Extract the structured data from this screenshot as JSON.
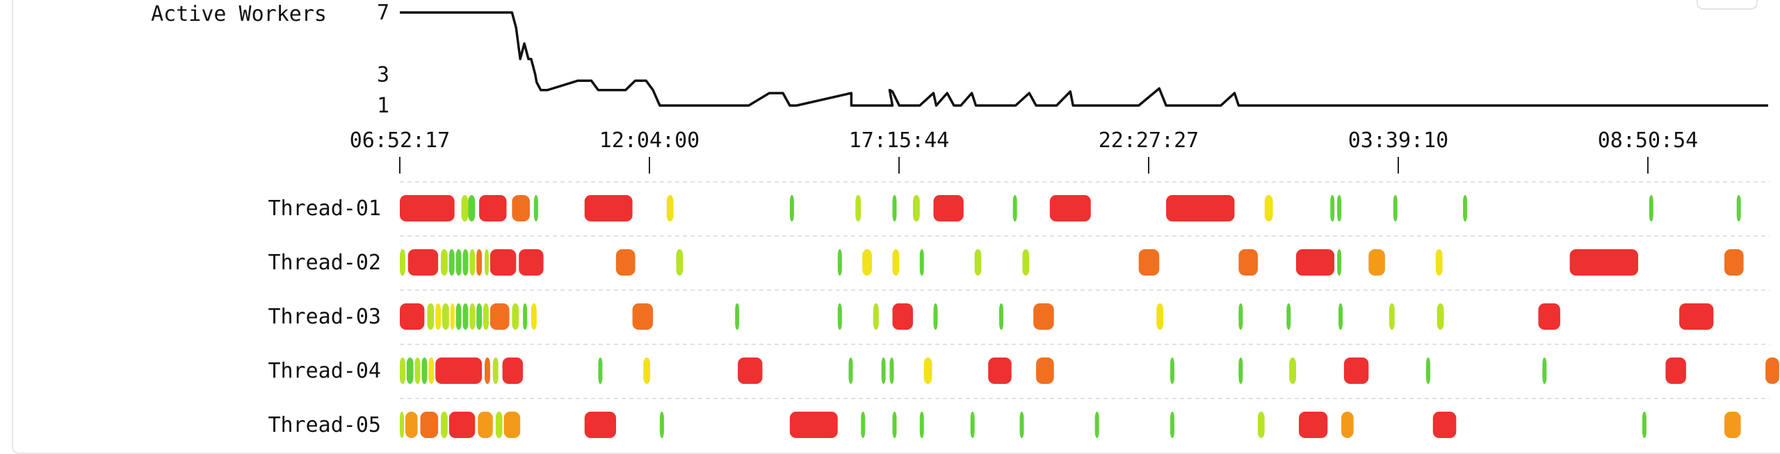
{
  "chart_data": {
    "type": "timeline",
    "title": "",
    "workers_chart": {
      "label": "Active Workers",
      "y_ticks": [
        7,
        3,
        1
      ],
      "ylim": [
        1,
        7
      ],
      "line_color": "#111111",
      "series_t": [
        0,
        0.082,
        0.085,
        0.088,
        0.091,
        0.094,
        0.096,
        0.099,
        0.1,
        0.103,
        0.108,
        0.13,
        0.14,
        0.145,
        0.165,
        0.172,
        0.18,
        0.185,
        0.19,
        0.2,
        0.21,
        0.255,
        0.27,
        0.28,
        0.285,
        0.29,
        0.33,
        0.33,
        0.36,
        0.358,
        0.36,
        0.365,
        0.38,
        0.39,
        0.392,
        0.4,
        0.405,
        0.408,
        0.41,
        0.418,
        0.421,
        0.45,
        0.46,
        0.465,
        0.47,
        0.48,
        0.49,
        0.492,
        0.495,
        0.5,
        0.51,
        0.52,
        0.54,
        0.555,
        0.56,
        0.57,
        0.6,
        0.61,
        0.613,
        0.625,
        0.62,
        0.65,
        0.67,
        0.675,
        0.68,
        0.685,
        0.69,
        0.7,
        0.71,
        0.715,
        0.72,
        0.725,
        0.74,
        0.745,
        0.76,
        0.765,
        0.78,
        0.785,
        0.8,
        0.805,
        0.81,
        0.83,
        0.86,
        0.9,
        0.91,
        0.94,
        0.945,
        0.955,
        0.965,
        0.97,
        0.975,
        0.98,
        0.985,
        0.99,
        1.0,
        1.01
      ],
      "series_v": [
        7,
        7,
        6,
        4,
        5,
        4,
        4,
        3,
        2.5,
        2,
        2,
        2.6,
        2.6,
        2,
        2,
        2.6,
        2.6,
        2,
        1,
        1,
        1,
        1,
        1.8,
        1.8,
        1,
        1,
        1.8,
        1,
        1,
        2,
        1.9,
        1,
        1,
        1.8,
        1,
        1.8,
        1,
        1,
        1,
        1.8,
        1,
        1,
        1.8,
        1,
        1,
        1,
        1.9,
        1,
        1,
        1,
        1,
        1,
        1,
        2.1,
        1,
        1,
        1,
        1.8,
        1,
        1,
        1,
        1,
        1,
        1,
        1,
        1,
        1,
        1,
        1,
        1,
        1,
        1,
        1,
        1,
        1,
        1,
        1,
        1,
        1,
        1,
        1,
        1,
        1,
        1,
        1,
        1,
        1,
        1,
        1,
        1,
        1,
        1,
        1,
        1,
        1,
        1
      ]
    },
    "x_tick_labels": [
      "06:52:17",
      "12:04:00",
      "17:15:44",
      "22:27:27",
      "03:39:10",
      "08:50:54"
    ],
    "status_colors": {
      "red": "#ee3030",
      "orange": "#f07020",
      "amber": "#f39a1a",
      "yellow": "#f2e21a",
      "lime": "#b7e327",
      "green": "#5fd23a"
    },
    "threads": [
      {
        "name": "Thread-01",
        "bars": [
          {
            "start": 0.0,
            "end": 0.04,
            "color": "red"
          },
          {
            "start": 0.045,
            "end": 0.05,
            "color": "lime"
          },
          {
            "start": 0.05,
            "end": 0.055,
            "color": "green"
          },
          {
            "start": 0.058,
            "end": 0.078,
            "color": "red"
          },
          {
            "start": 0.082,
            "end": 0.095,
            "color": "orange"
          },
          {
            "start": 0.098,
            "end": 0.1,
            "color": "green"
          },
          {
            "start": 0.135,
            "end": 0.17,
            "color": "red"
          },
          {
            "start": 0.195,
            "end": 0.2,
            "color": "yellow"
          },
          {
            "start": 0.285,
            "end": 0.287,
            "color": "green"
          },
          {
            "start": 0.333,
            "end": 0.337,
            "color": "lime"
          },
          {
            "start": 0.36,
            "end": 0.362,
            "color": "green"
          },
          {
            "start": 0.375,
            "end": 0.38,
            "color": "lime"
          },
          {
            "start": 0.39,
            "end": 0.412,
            "color": "red"
          },
          {
            "start": 0.448,
            "end": 0.45,
            "color": "green"
          },
          {
            "start": 0.475,
            "end": 0.505,
            "color": "red"
          },
          {
            "start": 0.56,
            "end": 0.61,
            "color": "red"
          },
          {
            "start": 0.632,
            "end": 0.638,
            "color": "yellow"
          },
          {
            "start": 0.68,
            "end": 0.683,
            "color": "green"
          },
          {
            "start": 0.685,
            "end": 0.688,
            "color": "green"
          },
          {
            "start": 0.726,
            "end": 0.728,
            "color": "green"
          },
          {
            "start": 0.777,
            "end": 0.779,
            "color": "green"
          },
          {
            "start": 0.913,
            "end": 0.915,
            "color": "green"
          },
          {
            "start": 0.977,
            "end": 0.979,
            "color": "green"
          }
        ]
      },
      {
        "name": "Thread-02",
        "bars": [
          {
            "start": 0.0,
            "end": 0.004,
            "color": "lime"
          },
          {
            "start": 0.006,
            "end": 0.028,
            "color": "red"
          },
          {
            "start": 0.03,
            "end": 0.035,
            "color": "lime"
          },
          {
            "start": 0.036,
            "end": 0.04,
            "color": "green"
          },
          {
            "start": 0.041,
            "end": 0.045,
            "color": "green"
          },
          {
            "start": 0.046,
            "end": 0.05,
            "color": "green"
          },
          {
            "start": 0.051,
            "end": 0.055,
            "color": "lime"
          },
          {
            "start": 0.056,
            "end": 0.06,
            "color": "orange"
          },
          {
            "start": 0.062,
            "end": 0.065,
            "color": "lime"
          },
          {
            "start": 0.066,
            "end": 0.085,
            "color": "red"
          },
          {
            "start": 0.087,
            "end": 0.105,
            "color": "red"
          },
          {
            "start": 0.158,
            "end": 0.172,
            "color": "orange"
          },
          {
            "start": 0.202,
            "end": 0.207,
            "color": "lime"
          },
          {
            "start": 0.32,
            "end": 0.323,
            "color": "green"
          },
          {
            "start": 0.338,
            "end": 0.345,
            "color": "yellow"
          },
          {
            "start": 0.36,
            "end": 0.365,
            "color": "yellow"
          },
          {
            "start": 0.38,
            "end": 0.383,
            "color": "green"
          },
          {
            "start": 0.42,
            "end": 0.425,
            "color": "lime"
          },
          {
            "start": 0.455,
            "end": 0.46,
            "color": "lime"
          },
          {
            "start": 0.54,
            "end": 0.555,
            "color": "orange"
          },
          {
            "start": 0.613,
            "end": 0.627,
            "color": "orange"
          },
          {
            "start": 0.655,
            "end": 0.683,
            "color": "red"
          },
          {
            "start": 0.685,
            "end": 0.687,
            "color": "green"
          },
          {
            "start": 0.708,
            "end": 0.72,
            "color": "amber"
          },
          {
            "start": 0.757,
            "end": 0.762,
            "color": "yellow"
          },
          {
            "start": 0.855,
            "end": 0.905,
            "color": "red"
          },
          {
            "start": 0.968,
            "end": 0.982,
            "color": "orange"
          }
        ]
      },
      {
        "name": "Thread-03",
        "bars": [
          {
            "start": 0.0,
            "end": 0.018,
            "color": "red"
          },
          {
            "start": 0.02,
            "end": 0.025,
            "color": "lime"
          },
          {
            "start": 0.026,
            "end": 0.03,
            "color": "yellow"
          },
          {
            "start": 0.031,
            "end": 0.036,
            "color": "lime"
          },
          {
            "start": 0.037,
            "end": 0.04,
            "color": "yellow"
          },
          {
            "start": 0.041,
            "end": 0.045,
            "color": "green"
          },
          {
            "start": 0.046,
            "end": 0.05,
            "color": "green"
          },
          {
            "start": 0.051,
            "end": 0.055,
            "color": "lime"
          },
          {
            "start": 0.056,
            "end": 0.06,
            "color": "green"
          },
          {
            "start": 0.061,
            "end": 0.065,
            "color": "lime"
          },
          {
            "start": 0.066,
            "end": 0.08,
            "color": "orange"
          },
          {
            "start": 0.082,
            "end": 0.087,
            "color": "lime"
          },
          {
            "start": 0.09,
            "end": 0.093,
            "color": "green"
          },
          {
            "start": 0.096,
            "end": 0.1,
            "color": "yellow"
          },
          {
            "start": 0.17,
            "end": 0.185,
            "color": "orange"
          },
          {
            "start": 0.245,
            "end": 0.247,
            "color": "green"
          },
          {
            "start": 0.32,
            "end": 0.323,
            "color": "green"
          },
          {
            "start": 0.346,
            "end": 0.35,
            "color": "lime"
          },
          {
            "start": 0.36,
            "end": 0.375,
            "color": "red"
          },
          {
            "start": 0.39,
            "end": 0.392,
            "color": "green"
          },
          {
            "start": 0.438,
            "end": 0.44,
            "color": "green"
          },
          {
            "start": 0.463,
            "end": 0.478,
            "color": "orange"
          },
          {
            "start": 0.553,
            "end": 0.558,
            "color": "yellow"
          },
          {
            "start": 0.613,
            "end": 0.616,
            "color": "green"
          },
          {
            "start": 0.648,
            "end": 0.651,
            "color": "green"
          },
          {
            "start": 0.686,
            "end": 0.688,
            "color": "green"
          },
          {
            "start": 0.723,
            "end": 0.727,
            "color": "lime"
          },
          {
            "start": 0.758,
            "end": 0.763,
            "color": "lime"
          },
          {
            "start": 0.832,
            "end": 0.848,
            "color": "red"
          },
          {
            "start": 0.935,
            "end": 0.96,
            "color": "red"
          }
        ]
      },
      {
        "name": "Thread-04",
        "bars": [
          {
            "start": 0.0,
            "end": 0.004,
            "color": "lime"
          },
          {
            "start": 0.005,
            "end": 0.01,
            "color": "green"
          },
          {
            "start": 0.011,
            "end": 0.015,
            "color": "lime"
          },
          {
            "start": 0.016,
            "end": 0.02,
            "color": "green"
          },
          {
            "start": 0.021,
            "end": 0.025,
            "color": "yellow"
          },
          {
            "start": 0.026,
            "end": 0.06,
            "color": "red"
          },
          {
            "start": 0.062,
            "end": 0.066,
            "color": "orange"
          },
          {
            "start": 0.068,
            "end": 0.072,
            "color": "lime"
          },
          {
            "start": 0.075,
            "end": 0.09,
            "color": "red"
          },
          {
            "start": 0.145,
            "end": 0.147,
            "color": "green"
          },
          {
            "start": 0.178,
            "end": 0.183,
            "color": "yellow"
          },
          {
            "start": 0.247,
            "end": 0.265,
            "color": "red"
          },
          {
            "start": 0.328,
            "end": 0.331,
            "color": "green"
          },
          {
            "start": 0.352,
            "end": 0.354,
            "color": "green"
          },
          {
            "start": 0.358,
            "end": 0.361,
            "color": "green"
          },
          {
            "start": 0.383,
            "end": 0.389,
            "color": "yellow"
          },
          {
            "start": 0.43,
            "end": 0.447,
            "color": "red"
          },
          {
            "start": 0.465,
            "end": 0.478,
            "color": "orange"
          },
          {
            "start": 0.563,
            "end": 0.565,
            "color": "green"
          },
          {
            "start": 0.613,
            "end": 0.616,
            "color": "green"
          },
          {
            "start": 0.65,
            "end": 0.655,
            "color": "lime"
          },
          {
            "start": 0.69,
            "end": 0.708,
            "color": "red"
          },
          {
            "start": 0.75,
            "end": 0.753,
            "color": "green"
          },
          {
            "start": 0.835,
            "end": 0.837,
            "color": "green"
          },
          {
            "start": 0.925,
            "end": 0.94,
            "color": "red"
          },
          {
            "start": 0.998,
            "end": 1.01,
            "color": "orange"
          }
        ]
      },
      {
        "name": "Thread-05",
        "bars": [
          {
            "start": 0.0,
            "end": 0.003,
            "color": "lime"
          },
          {
            "start": 0.004,
            "end": 0.013,
            "color": "amber"
          },
          {
            "start": 0.015,
            "end": 0.028,
            "color": "orange"
          },
          {
            "start": 0.03,
            "end": 0.035,
            "color": "lime"
          },
          {
            "start": 0.036,
            "end": 0.055,
            "color": "red"
          },
          {
            "start": 0.057,
            "end": 0.068,
            "color": "amber"
          },
          {
            "start": 0.07,
            "end": 0.075,
            "color": "lime"
          },
          {
            "start": 0.076,
            "end": 0.088,
            "color": "amber"
          },
          {
            "start": 0.135,
            "end": 0.158,
            "color": "red"
          },
          {
            "start": 0.19,
            "end": 0.192,
            "color": "green"
          },
          {
            "start": 0.285,
            "end": 0.32,
            "color": "red"
          },
          {
            "start": 0.337,
            "end": 0.339,
            "color": "green"
          },
          {
            "start": 0.36,
            "end": 0.362,
            "color": "green"
          },
          {
            "start": 0.38,
            "end": 0.382,
            "color": "green"
          },
          {
            "start": 0.417,
            "end": 0.419,
            "color": "green"
          },
          {
            "start": 0.453,
            "end": 0.455,
            "color": "green"
          },
          {
            "start": 0.508,
            "end": 0.51,
            "color": "green"
          },
          {
            "start": 0.563,
            "end": 0.565,
            "color": "green"
          },
          {
            "start": 0.627,
            "end": 0.632,
            "color": "lime"
          },
          {
            "start": 0.657,
            "end": 0.678,
            "color": "red"
          },
          {
            "start": 0.688,
            "end": 0.697,
            "color": "amber"
          },
          {
            "start": 0.755,
            "end": 0.772,
            "color": "red"
          },
          {
            "start": 0.908,
            "end": 0.91,
            "color": "green"
          },
          {
            "start": 0.968,
            "end": 0.98,
            "color": "amber"
          }
        ]
      }
    ]
  }
}
